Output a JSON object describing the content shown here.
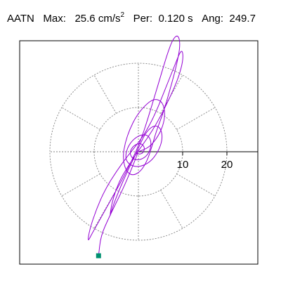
{
  "header": {
    "station": "AATN",
    "max_label": "Max:",
    "max_value": "25.6",
    "max_unit": "cm/s",
    "max_exp": "2",
    "per_label": "Per:",
    "per_value": "0.120 s",
    "ang_label": "Ang:",
    "ang_value": "249.7"
  },
  "colors": {
    "trace": "#9400d3",
    "endpoint": "#009070",
    "grid": "#808080",
    "axis": "#000000"
  },
  "chart_data": {
    "type": "polar-particle-motion",
    "units": "cm/s^2",
    "rings": [
      10,
      20
    ],
    "ring_labels": [
      "10",
      "20"
    ],
    "grid": true,
    "radial_spokes_deg": [
      0,
      30,
      60,
      90,
      120,
      150,
      180,
      210,
      240,
      270,
      300,
      330
    ],
    "end_marker": {
      "x": -9.0,
      "y": -23.5,
      "label": "end point"
    },
    "trace_approx": [
      [
        0,
        0
      ],
      [
        2.5,
        1.0
      ],
      [
        4.5,
        3.5
      ],
      [
        5.8,
        6.5
      ],
      [
        6.0,
        9.5
      ],
      [
        5.2,
        11.5
      ],
      [
        3.5,
        12.0
      ],
      [
        1.5,
        10.5
      ],
      [
        -0.5,
        8.0
      ],
      [
        -2.0,
        5.0
      ],
      [
        -3.0,
        2.0
      ],
      [
        -3.5,
        -1.0
      ],
      [
        -3.0,
        -4.0
      ],
      [
        -1.5,
        -5.5
      ],
      [
        0.5,
        -4.5
      ],
      [
        2.0,
        -2.0
      ],
      [
        3.0,
        1.0
      ],
      [
        4.0,
        4.5
      ],
      [
        5.5,
        8.5
      ],
      [
        7.0,
        13.5
      ],
      [
        8.5,
        19.0
      ],
      [
        9.5,
        24.0
      ],
      [
        9.0,
        26.5
      ],
      [
        7.8,
        25.5
      ],
      [
        6.5,
        22.0
      ],
      [
        5.0,
        17.0
      ],
      [
        3.5,
        12.0
      ],
      [
        2.0,
        7.0
      ],
      [
        0.5,
        2.5
      ],
      [
        -1.5,
        -2.0
      ],
      [
        -3.5,
        -6.0
      ],
      [
        -6.0,
        -10.5
      ],
      [
        -8.5,
        -15.0
      ],
      [
        -10.5,
        -18.5
      ],
      [
        -11.5,
        -20.5
      ],
      [
        -11.0,
        -17.5
      ],
      [
        -9.5,
        -13.0
      ],
      [
        -7.5,
        -8.5
      ],
      [
        -5.0,
        -4.5
      ],
      [
        -2.5,
        -1.0
      ],
      [
        0.0,
        2.0
      ],
      [
        2.0,
        5.0
      ],
      [
        4.0,
        9.0
      ],
      [
        6.0,
        14.0
      ],
      [
        8.0,
        19.0
      ],
      [
        9.8,
        23.5
      ],
      [
        10.2,
        21.0
      ],
      [
        9.0,
        16.5
      ],
      [
        7.0,
        12.0
      ],
      [
        4.5,
        7.0
      ],
      [
        2.0,
        3.0
      ],
      [
        -0.5,
        -0.5
      ],
      [
        -2.5,
        -3.5
      ],
      [
        -4.5,
        -7.0
      ],
      [
        -6.0,
        -11.5
      ],
      [
        -6.5,
        -15.0
      ],
      [
        -6.0,
        -13.0
      ],
      [
        -4.5,
        -9.0
      ],
      [
        -2.5,
        -4.5
      ],
      [
        -0.8,
        -1.0
      ],
      [
        0.5,
        2.0
      ],
      [
        1.8,
        4.5
      ],
      [
        3.5,
        6.0
      ],
      [
        5.0,
        5.5
      ],
      [
        5.5,
        3.0
      ],
      [
        4.5,
        0.0
      ],
      [
        2.5,
        -2.5
      ],
      [
        0.0,
        -3.5
      ],
      [
        -2.0,
        -3.0
      ],
      [
        -3.0,
        -1.5
      ],
      [
        -2.5,
        1.0
      ],
      [
        -1.0,
        3.0
      ],
      [
        1.0,
        4.0
      ],
      [
        2.5,
        3.5
      ],
      [
        3.0,
        1.5
      ],
      [
        2.0,
        -1.0
      ],
      [
        0.0,
        -2.0
      ],
      [
        -1.5,
        -1.5
      ],
      [
        -2.0,
        0.0
      ],
      [
        -1.0,
        1.5
      ],
      [
        0.5,
        2.0
      ],
      [
        1.5,
        1.0
      ],
      [
        1.0,
        -0.5
      ],
      [
        -0.5,
        -0.5
      ],
      [
        0,
        0
      ],
      [
        -2.0,
        -5.0
      ],
      [
        -4.0,
        -9.5
      ],
      [
        -6.5,
        -14.5
      ],
      [
        -8.5,
        -19.0
      ],
      [
        -9.0,
        -23.5
      ]
    ]
  }
}
